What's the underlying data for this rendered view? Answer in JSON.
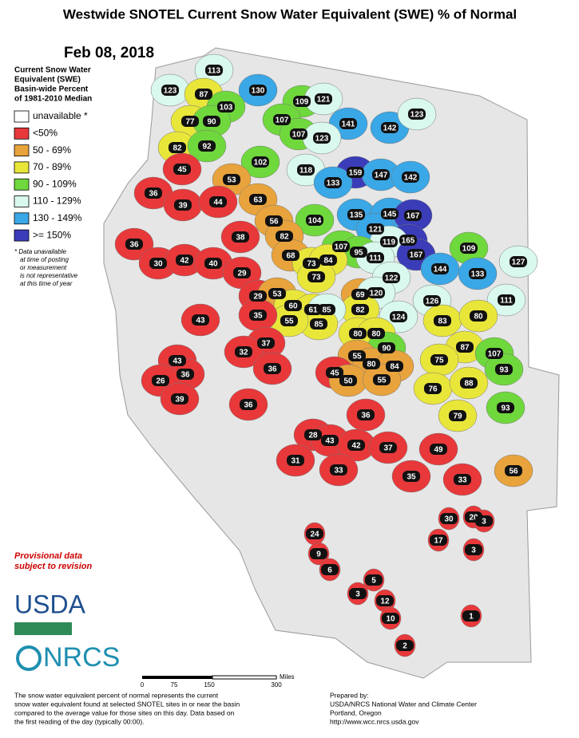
{
  "header": {
    "title": "Westwide SNOTEL Current Snow Water Equivalent (SWE) % of Normal",
    "date": "Feb 08, 2018"
  },
  "legend": {
    "heading": [
      "Current Snow Water",
      "Equivalent (SWE)",
      "Basin-wide Percent",
      "of 1981-2010 Median"
    ],
    "items": [
      {
        "label": "unavailable *",
        "color": "#ffffff"
      },
      {
        "label": "<50%",
        "color": "#e8383a"
      },
      {
        "label": "50 - 69%",
        "color": "#e8a33c"
      },
      {
        "label": "70 - 89%",
        "color": "#e9e63a"
      },
      {
        "label": "90 - 109%",
        "color": "#6fd83c"
      },
      {
        "label": "110 - 129%",
        "color": "#d9f8ee"
      },
      {
        "label": "130 - 149%",
        "color": "#3aa7e6"
      },
      {
        "label": ">= 150%",
        "color": "#3a3cb8"
      }
    ],
    "note": [
      "*  Data unavailable",
      "at time of posting",
      "or measurement",
      "is not representative",
      "at this time of year"
    ]
  },
  "provisional": [
    "Provisional data",
    "subject to revision"
  ],
  "logos": {
    "usda": "USDA",
    "nrcs": "NRCS"
  },
  "scale": {
    "ticks": [
      "0",
      "75",
      "150",
      "300"
    ],
    "unit": "Miles"
  },
  "basins": [
    113,
    123,
    87,
    130,
    109,
    121,
    103,
    77,
    90,
    107,
    141,
    142,
    123,
    107,
    123,
    82,
    92,
    45,
    102,
    118,
    159,
    147,
    142,
    133,
    53,
    36,
    39,
    44,
    63,
    104,
    135,
    145,
    167,
    56,
    82,
    121,
    165,
    119,
    167,
    109,
    127,
    36,
    38,
    107,
    95,
    111,
    30,
    42,
    40,
    68,
    73,
    84,
    144,
    133,
    29,
    73,
    122,
    111,
    69,
    120,
    126,
    82,
    29,
    53,
    60,
    61,
    85,
    85,
    55,
    35,
    43,
    124,
    83,
    80,
    80,
    80,
    37,
    32,
    90,
    87,
    107,
    55,
    75,
    43,
    80,
    84,
    36,
    36,
    93,
    26,
    45,
    50,
    55,
    76,
    88,
    39,
    36,
    93,
    36,
    79,
    28,
    43,
    42,
    37,
    49,
    31,
    33,
    35,
    33,
    56,
    30,
    20,
    3,
    17,
    3,
    24,
    9,
    6,
    5,
    3,
    12,
    10,
    1,
    2
  ],
  "footer": {
    "description": [
      "The snow water equivalent percent of normal represents the current",
      "snow water equivalent found at selected SNOTEL sites in or near the basin",
      "compared to the average value for those sites on this day. Data based on",
      "the first reading of the day (typically 00:00)."
    ],
    "prepared": [
      "Prepared by:",
      "USDA/NRCS National Water and Climate Center",
      "Portland, Oregon",
      "http://www.wcc.nrcs.usda.gov"
    ]
  }
}
